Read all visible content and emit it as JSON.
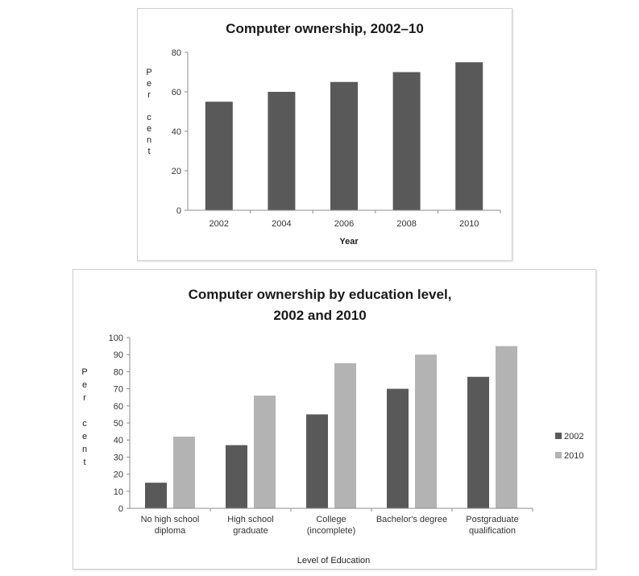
{
  "chart_data": [
    {
      "type": "bar",
      "title": "Computer ownership, 2002–10",
      "categories": [
        "2002",
        "2004",
        "2006",
        "2008",
        "2010"
      ],
      "values": [
        55,
        60,
        65,
        70,
        75
      ],
      "xlabel": "Year",
      "ylabel": "Per cent",
      "ylim": [
        0,
        80
      ],
      "yticks": [
        0,
        20,
        40,
        60,
        80
      ],
      "grid": false,
      "colors": {
        "bar": "#595959"
      }
    },
    {
      "type": "bar",
      "title_lines": [
        "Computer ownership by education level,",
        "2002 and 2010"
      ],
      "categories": [
        [
          "No high school",
          "diploma"
        ],
        [
          "High school",
          "graduate"
        ],
        [
          "College",
          "(incomplete)"
        ],
        [
          "Bachelor's degree"
        ],
        [
          "Postgraduate",
          "qualification"
        ]
      ],
      "series": [
        {
          "name": "2002",
          "values": [
            15,
            37,
            55,
            70,
            77
          ],
          "color": "#595959"
        },
        {
          "name": "2010",
          "values": [
            42,
            66,
            85,
            90,
            95
          ],
          "color": "#b3b3b3"
        }
      ],
      "xlabel": "Level of Education",
      "ylabel": "Per cent",
      "ylim": [
        0,
        100
      ],
      "yticks": [
        0,
        10,
        20,
        30,
        40,
        50,
        60,
        70,
        80,
        90,
        100
      ],
      "grid": false,
      "legend": "right"
    }
  ]
}
